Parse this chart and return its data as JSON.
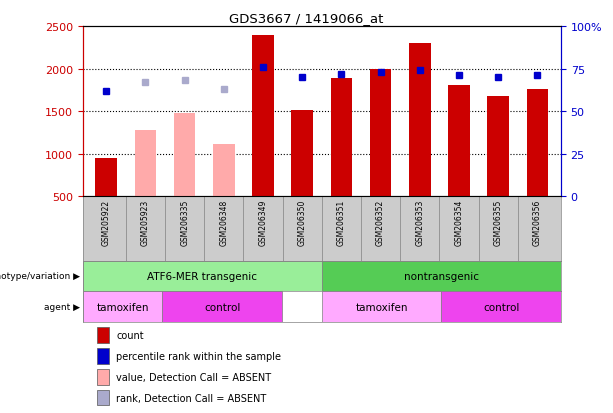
{
  "title": "GDS3667 / 1419066_at",
  "samples": [
    "GSM205922",
    "GSM205923",
    "GSM206335",
    "GSM206348",
    "GSM206349",
    "GSM206350",
    "GSM206351",
    "GSM206352",
    "GSM206353",
    "GSM206354",
    "GSM206355",
    "GSM206356"
  ],
  "counts": [
    950,
    null,
    null,
    null,
    2390,
    1510,
    1890,
    2000,
    2300,
    1810,
    1680,
    1760
  ],
  "counts_absent": [
    null,
    1280,
    1480,
    1120,
    null,
    null,
    null,
    null,
    null,
    null,
    null,
    null
  ],
  "percentile_rank": [
    62,
    null,
    null,
    null,
    76,
    70,
    72,
    73,
    74,
    71,
    70,
    71
  ],
  "percentile_rank_absent": [
    null,
    67,
    68,
    63,
    null,
    null,
    null,
    null,
    null,
    null,
    null,
    null
  ],
  "ylim_left": [
    500,
    2500
  ],
  "ylim_right": [
    0,
    100
  ],
  "yticks_left": [
    500,
    1000,
    1500,
    2000,
    2500
  ],
  "yticks_right": [
    0,
    25,
    50,
    75,
    100
  ],
  "bar_color": "#cc0000",
  "bar_absent_color": "#ffaaaa",
  "dot_color": "#0000cc",
  "dot_absent_color": "#aaaacc",
  "plot_bg_color": "#ffffff",
  "groups": [
    {
      "label": "ATF6-MER transgenic",
      "start": 0,
      "end": 5,
      "color": "#99ee99"
    },
    {
      "label": "nontransgenic",
      "start": 6,
      "end": 11,
      "color": "#55cc55"
    }
  ],
  "agents": [
    {
      "label": "tamoxifen",
      "start": 0,
      "end": 1,
      "color": "#ffaaff"
    },
    {
      "label": "control",
      "start": 2,
      "end": 4,
      "color": "#ee44ee"
    },
    {
      "label": "tamoxifen",
      "start": 6,
      "end": 8,
      "color": "#ffaaff"
    },
    {
      "label": "control",
      "start": 9,
      "end": 11,
      "color": "#ee44ee"
    }
  ],
  "legend_items": [
    {
      "label": "count",
      "color": "#cc0000"
    },
    {
      "label": "percentile rank within the sample",
      "color": "#0000cc"
    },
    {
      "label": "value, Detection Call = ABSENT",
      "color": "#ffaaaa"
    },
    {
      "label": "rank, Detection Call = ABSENT",
      "color": "#aaaacc"
    }
  ],
  "left_label_color": "#cc0000",
  "right_label_color": "#0000cc",
  "sample_band_color": "#cccccc"
}
